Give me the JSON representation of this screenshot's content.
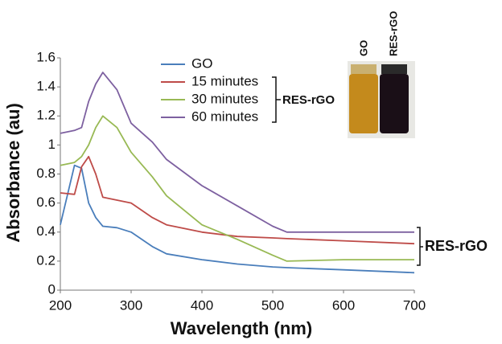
{
  "chart_data": {
    "type": "line",
    "x": [
      200,
      220,
      230,
      240,
      250,
      260,
      280,
      300,
      330,
      350,
      400,
      450,
      500,
      520,
      600,
      700
    ],
    "series": [
      {
        "name": "GO",
        "color": "#4a7ebb",
        "values": [
          0.45,
          0.86,
          0.84,
          0.6,
          0.5,
          0.44,
          0.43,
          0.4,
          0.3,
          0.25,
          0.21,
          0.18,
          0.16,
          0.155,
          0.14,
          0.12
        ]
      },
      {
        "name": "15 minutes",
        "color": "#be4b48",
        "values": [
          0.67,
          0.66,
          0.85,
          0.92,
          0.8,
          0.64,
          0.62,
          0.6,
          0.5,
          0.45,
          0.4,
          0.37,
          0.36,
          0.355,
          0.34,
          0.32
        ]
      },
      {
        "name": "30 minutes",
        "color": "#98b954",
        "values": [
          0.86,
          0.88,
          0.92,
          1.0,
          1.12,
          1.2,
          1.12,
          0.95,
          0.78,
          0.65,
          0.45,
          0.35,
          0.24,
          0.2,
          0.21,
          0.21
        ]
      },
      {
        "name": "60 minutes",
        "color": "#7d60a0",
        "values": [
          1.08,
          1.1,
          1.12,
          1.3,
          1.42,
          1.5,
          1.38,
          1.15,
          1.02,
          0.9,
          0.72,
          0.58,
          0.44,
          0.4,
          0.4,
          0.4
        ]
      }
    ],
    "x_label": "Wavelength (nm)",
    "y_label": "Absorbance (au)",
    "xlim": [
      200,
      700
    ],
    "xticks": [
      200,
      300,
      400,
      500,
      600,
      700
    ],
    "ylim": [
      0,
      1.6
    ],
    "yticks": [
      0,
      0.2,
      0.4,
      0.6,
      0.8,
      1,
      1.2,
      1.4,
      1.6
    ],
    "legend_group_label": "RES-rGO",
    "line_end_label": "RES-rGO",
    "photo_labels": [
      "GO",
      "RES-rGO"
    ]
  }
}
